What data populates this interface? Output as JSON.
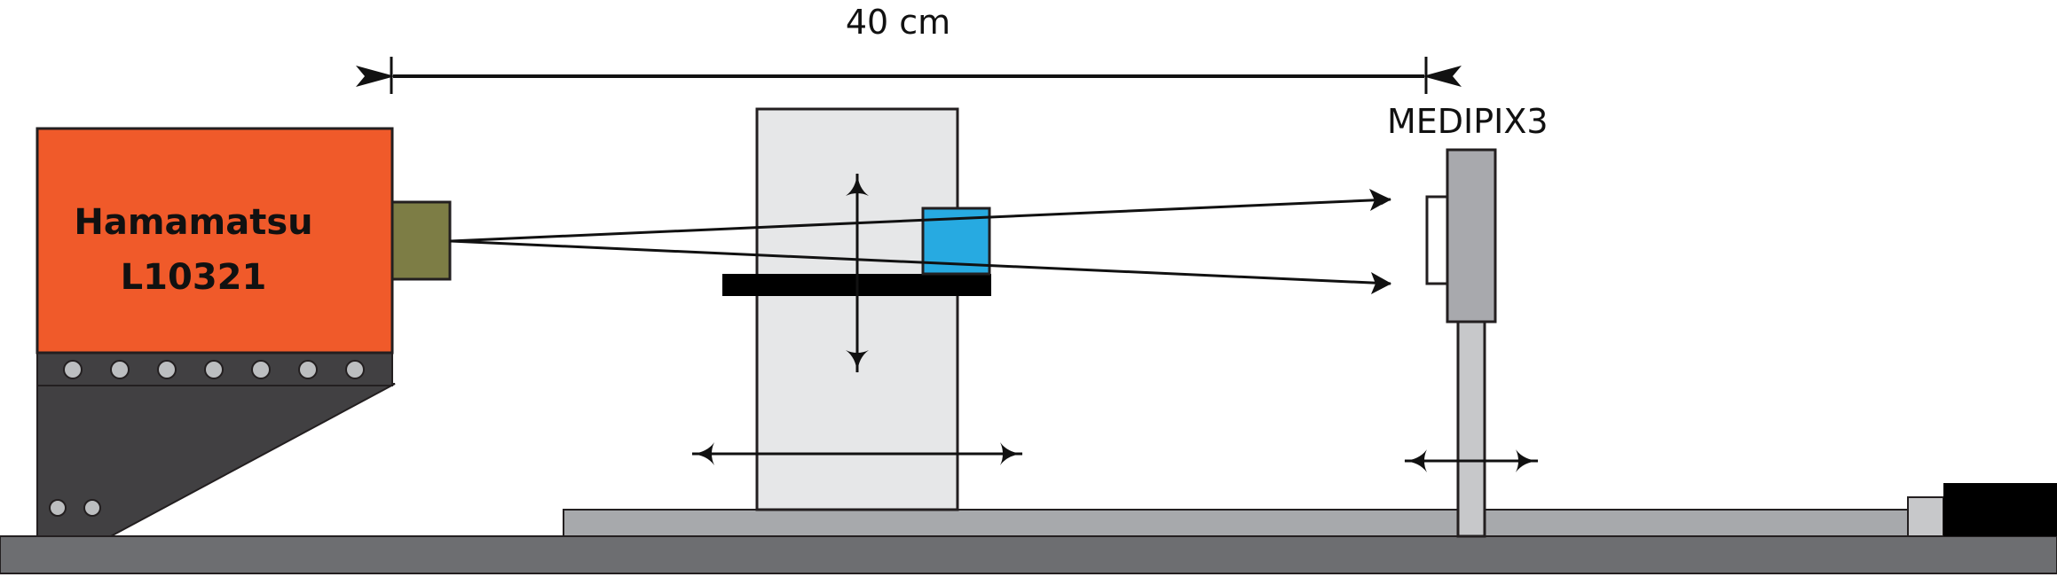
{
  "dimension": {
    "label": "40 cm"
  },
  "source": {
    "name": "Hamamatsu",
    "model": "L10321",
    "color": "#f05a2a",
    "window_color": "#7d7d45"
  },
  "detector": {
    "label": "MEDIPIX3",
    "color": "#a8a9ad"
  },
  "sample": {
    "color": "#27aae1"
  },
  "stage": {
    "color": "#e6e7e8"
  },
  "colors": {
    "rail": "#a7a9ac",
    "base": "#6d6e71",
    "mount": "#414042",
    "clamp": "#000000"
  }
}
